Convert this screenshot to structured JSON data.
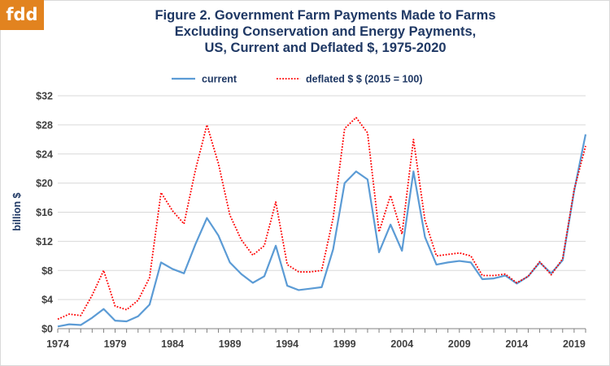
{
  "logo": {
    "text": "fdd",
    "color": "#e2831f"
  },
  "chart_data": {
    "type": "line",
    "title_lines": [
      "Figure 2.  Government Farm Payments Made to Farms",
      "Excluding Conservation and Energy Payments,",
      "US, Current and Deflated $, 1975-2020"
    ],
    "ylabel": "billion $",
    "xlabel": "",
    "ylim": [
      0,
      32
    ],
    "xlim": [
      1974,
      2020
    ],
    "yticks": [
      0,
      4,
      8,
      12,
      16,
      20,
      24,
      28,
      32
    ],
    "ytick_labels": [
      "$0",
      "$4",
      "$8",
      "$12",
      "$16",
      "$20",
      "$24",
      "$28",
      "$32"
    ],
    "xticks": [
      1974,
      1979,
      1984,
      1989,
      1994,
      1999,
      2004,
      2009,
      2014,
      2019
    ],
    "xtick_labels": [
      "1974",
      "1979",
      "1984",
      "1989",
      "1994",
      "1999",
      "2004",
      "2009",
      "2014",
      "2019"
    ],
    "grid": "horizontal",
    "legend_position": "top-center",
    "x": [
      1974,
      1975,
      1976,
      1977,
      1978,
      1979,
      1980,
      1981,
      1982,
      1983,
      1984,
      1985,
      1986,
      1987,
      1988,
      1989,
      1990,
      1991,
      1992,
      1993,
      1994,
      1995,
      1996,
      1997,
      1998,
      1999,
      2000,
      2001,
      2002,
      2003,
      2004,
      2005,
      2006,
      2007,
      2008,
      2009,
      2010,
      2011,
      2012,
      2013,
      2014,
      2015,
      2016,
      2017,
      2018,
      2019,
      2020
    ],
    "series": [
      {
        "name": "current",
        "color": "#5b9bd5",
        "style": "solid",
        "values": [
          0.3,
          0.6,
          0.5,
          1.5,
          2.7,
          1.1,
          1.0,
          1.7,
          3.3,
          9.1,
          8.2,
          7.6,
          11.6,
          15.2,
          12.8,
          9.1,
          7.5,
          6.3,
          7.2,
          11.4,
          5.9,
          5.3,
          5.5,
          5.7,
          10.9,
          20.0,
          21.6,
          20.5,
          10.5,
          14.3,
          10.7,
          21.6,
          12.6,
          8.8,
          9.1,
          9.3,
          9.1,
          6.8,
          6.9,
          7.3,
          6.2,
          7.2,
          9.1,
          7.6,
          9.4,
          18.9,
          26.7
        ]
      },
      {
        "name": "deflated $  $ (2015 = 100)",
        "color": "#ff0000",
        "style": "dotted",
        "values": [
          1.3,
          2.0,
          1.8,
          4.6,
          8.0,
          3.1,
          2.6,
          3.9,
          7.0,
          18.7,
          16.2,
          14.4,
          21.8,
          28.0,
          22.7,
          15.6,
          12.2,
          10.1,
          11.4,
          17.4,
          8.8,
          7.8,
          7.8,
          8.0,
          15.2,
          27.5,
          29.0,
          26.9,
          13.3,
          18.3,
          13.0,
          26.0,
          14.9,
          10.0,
          10.2,
          10.4,
          10.0,
          7.3,
          7.3,
          7.5,
          6.3,
          7.2,
          9.2,
          7.4,
          9.6,
          19.1,
          25.1
        ]
      }
    ]
  }
}
